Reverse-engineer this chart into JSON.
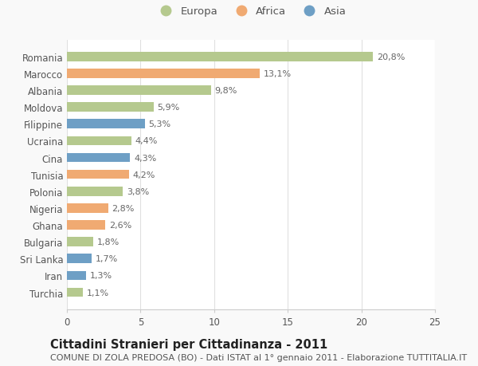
{
  "countries": [
    "Romania",
    "Marocco",
    "Albania",
    "Moldova",
    "Filippine",
    "Ucraina",
    "Cina",
    "Tunisia",
    "Polonia",
    "Nigeria",
    "Ghana",
    "Bulgaria",
    "Sri Lanka",
    "Iran",
    "Turchia"
  ],
  "values": [
    20.8,
    13.1,
    9.8,
    5.9,
    5.3,
    4.4,
    4.3,
    4.2,
    3.8,
    2.8,
    2.6,
    1.8,
    1.7,
    1.3,
    1.1
  ],
  "labels": [
    "20,8%",
    "13,1%",
    "9,8%",
    "5,9%",
    "5,3%",
    "4,4%",
    "4,3%",
    "4,2%",
    "3,8%",
    "2,8%",
    "2,6%",
    "1,8%",
    "1,7%",
    "1,3%",
    "1,1%"
  ],
  "continents": [
    "Europa",
    "Africa",
    "Europa",
    "Europa",
    "Asia",
    "Europa",
    "Asia",
    "Africa",
    "Europa",
    "Africa",
    "Africa",
    "Europa",
    "Asia",
    "Asia",
    "Europa"
  ],
  "colors": {
    "Europa": "#b5c98e",
    "Africa": "#f0aa72",
    "Asia": "#6e9fc5"
  },
  "xlim": [
    0,
    25
  ],
  "xticks": [
    0,
    5,
    10,
    15,
    20,
    25
  ],
  "title": "Cittadini Stranieri per Cittadinanza - 2011",
  "subtitle": "COMUNE DI ZOLA PREDOSA (BO) - Dati ISTAT al 1° gennaio 2011 - Elaborazione TUTTITALIA.IT",
  "background_color": "#f9f9f9",
  "bar_background": "#ffffff",
  "title_fontsize": 10.5,
  "subtitle_fontsize": 8,
  "label_fontsize": 8,
  "tick_fontsize": 8.5,
  "legend_fontsize": 9.5
}
